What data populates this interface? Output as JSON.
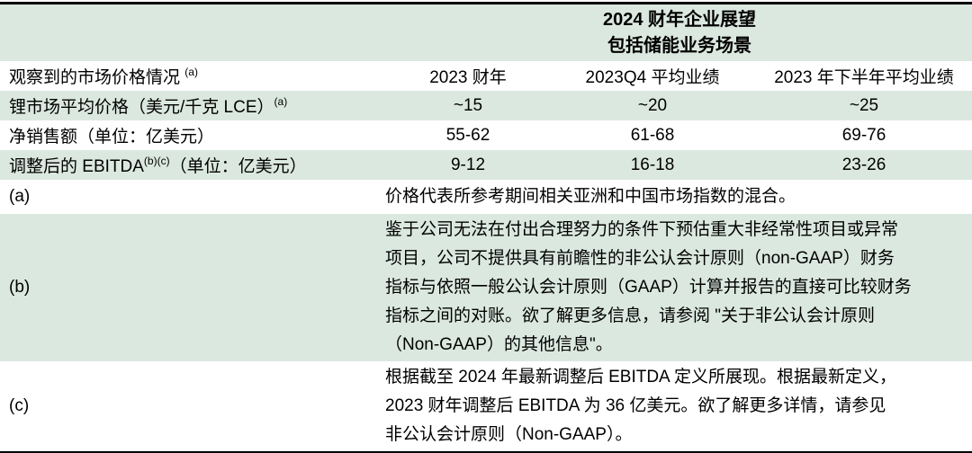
{
  "colors": {
    "header_band_green": "#dbe8e0",
    "text": "#000000"
  },
  "table": {
    "header": {
      "title_line1": "2024 财年企业展望",
      "title_line2": "包括储能业务场景"
    },
    "column_header_row": {
      "label_pre": "观察到的市场价格情况 ",
      "label_sup": "(a)",
      "cols": [
        "2023 财年",
        "2023Q4 平均业绩",
        "2023 年下半年平均业绩"
      ]
    },
    "rows": [
      {
        "label_pre": "锂市场平均价格（美元/千克 LCE）",
        "label_sup": "(a)",
        "label_post": "",
        "values": [
          "~15",
          "~20",
          "~25"
        ]
      },
      {
        "label_pre": "净销售额（单位：亿美元）",
        "label_sup": "",
        "label_post": "",
        "values": [
          "55-62",
          "61-68",
          "69-76"
        ]
      },
      {
        "label_pre": "调整后的 EBITDA",
        "label_sup": "(b)(c)",
        "label_post": "（单位：亿美元）",
        "values": [
          "9-12",
          "16-18",
          "23-26"
        ]
      }
    ],
    "footnotes": [
      {
        "label": "(a)",
        "text": "价格代表所参考期间相关亚洲和中国市场指数的混合。"
      },
      {
        "label": "(b)",
        "text": "鉴于公司无法在付出合理努力的条件下预估重大非经常性项目或异常\n项目，公司不提供具有前瞻性的非公认会计原则（non-GAAP）财务\n指标与依照一般公认会计原则（GAAP）计算并报告的直接可比较财务\n指标之间的对账。欲了解更多信息，请参阅 \"关于非公认会计原则\n（Non-GAAP）的其他信息\"。"
      },
      {
        "label": "(c)",
        "text": "根据截至 2024 年最新调整后 EBITDA 定义所展现。根据最新定义，\n2023 财年调整后 EBITDA 为 36 亿美元。欲了解更多详情，请参见\n非公认会计原则（Non-GAAP）。"
      }
    ]
  }
}
